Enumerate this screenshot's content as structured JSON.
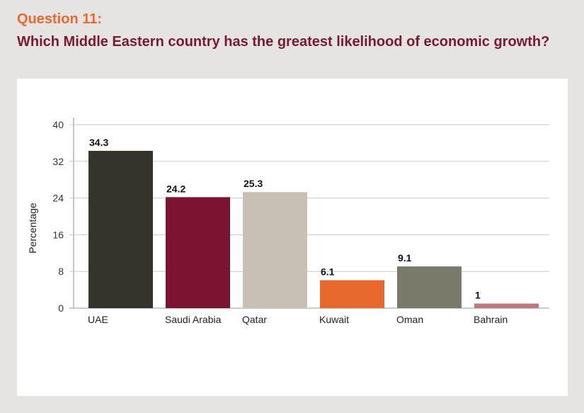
{
  "header": {
    "question_label": "Question 11:",
    "question_text": "Which Middle Eastern country has the greatest likelihood of economic growth?"
  },
  "colors": {
    "background": "#e6e4e2",
    "panel": "#ffffff",
    "question_label": "#e8692e",
    "question_text": "#7a1930",
    "gridline": "#c8c8c8"
  },
  "chart_data": {
    "type": "bar",
    "categories": [
      "UAE",
      "Saudi Arabia",
      "Qatar",
      "Kuwait",
      "Oman",
      "Bahrain"
    ],
    "values": [
      34.3,
      24.2,
      25.3,
      6.1,
      9.1,
      1
    ],
    "value_labels": [
      "34.3",
      "24.2",
      "25.3",
      "6.1",
      "9.1",
      "1"
    ],
    "bar_colors": [
      "#35342c",
      "#7b1430",
      "#c8bfb5",
      "#e8692e",
      "#7a7a6a",
      "#c0787a"
    ],
    "ylabel": "Percentage",
    "xlabel": "",
    "ylim": [
      0,
      40
    ],
    "yticks": [
      0,
      8,
      16,
      24,
      32,
      40
    ],
    "grid": true,
    "legend": "none"
  }
}
